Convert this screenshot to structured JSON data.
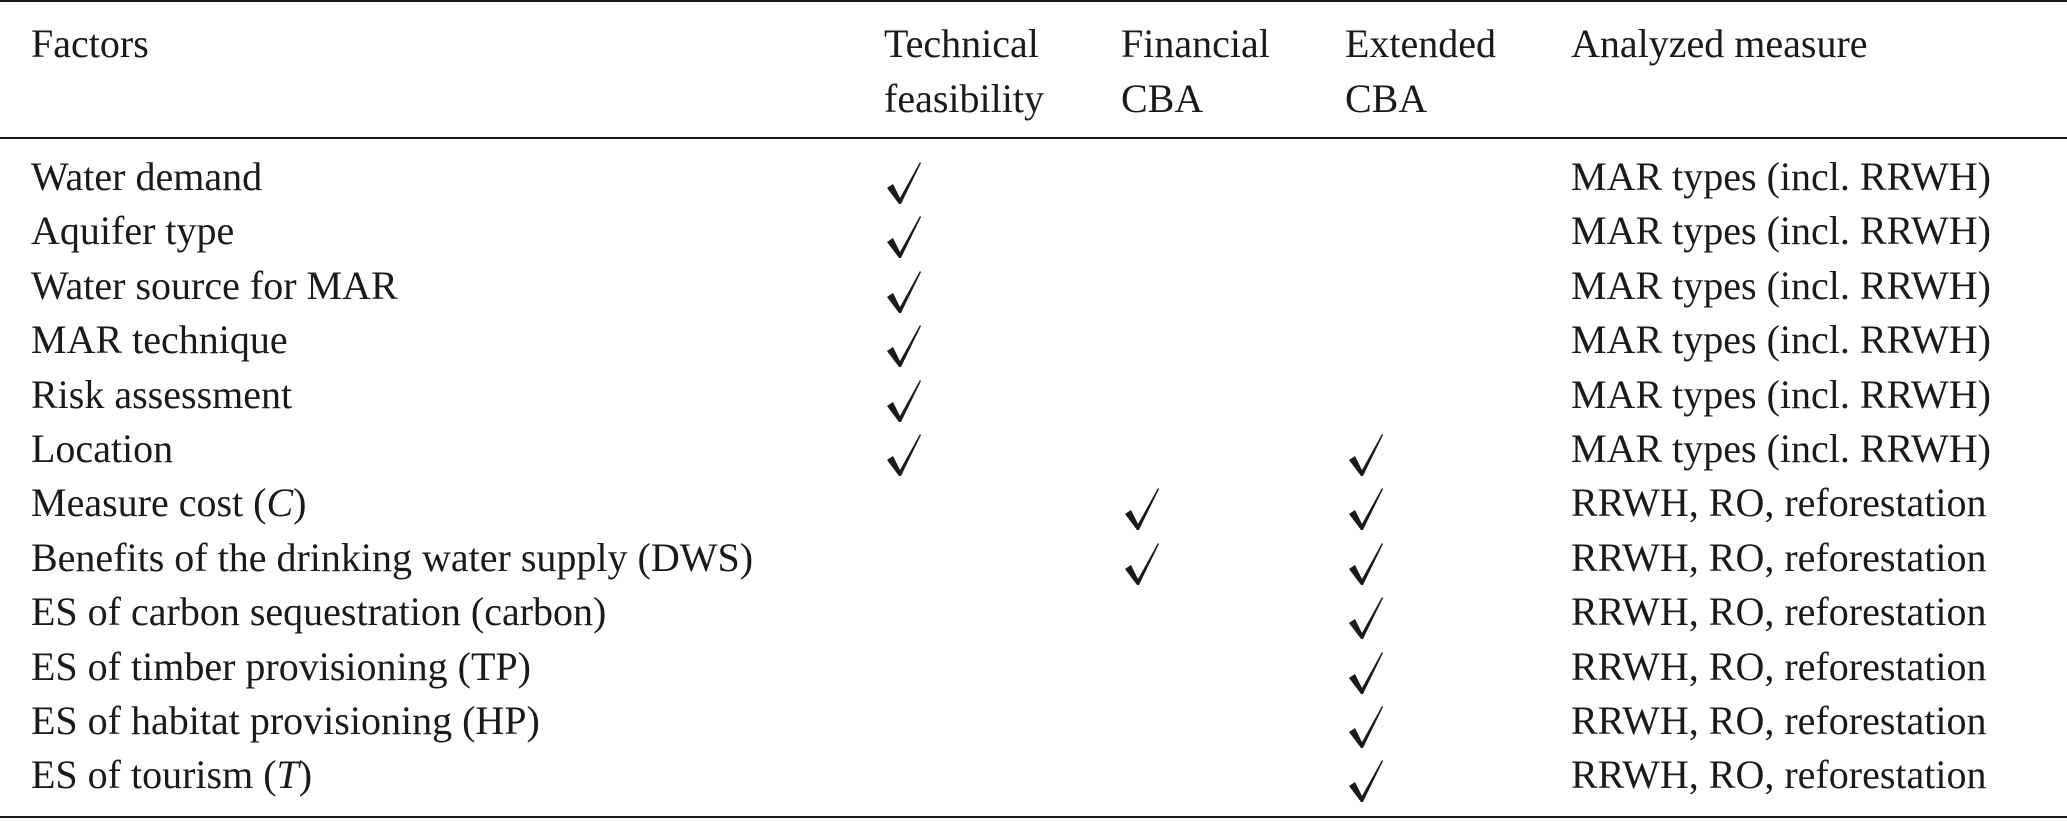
{
  "table": {
    "headers": {
      "factors": [
        "Factors"
      ],
      "technical": [
        "Technical",
        "feasibility"
      ],
      "financial": [
        "Financial",
        "CBA"
      ],
      "extended": [
        "Extended",
        "CBA"
      ],
      "measure": [
        "Analyzed measure"
      ]
    },
    "rows": [
      {
        "factor": "Water demand",
        "factor_italic": "",
        "factor_suffix": "",
        "technical": true,
        "financial": false,
        "extended": false,
        "measure": "MAR types (incl. RRWH)"
      },
      {
        "factor": "Aquifer type",
        "factor_italic": "",
        "factor_suffix": "",
        "technical": true,
        "financial": false,
        "extended": false,
        "measure": "MAR types (incl. RRWH)"
      },
      {
        "factor": "Water source for MAR",
        "factor_italic": "",
        "factor_suffix": "",
        "technical": true,
        "financial": false,
        "extended": false,
        "measure": "MAR types (incl. RRWH)"
      },
      {
        "factor": "MAR technique",
        "factor_italic": "",
        "factor_suffix": "",
        "technical": true,
        "financial": false,
        "extended": false,
        "measure": "MAR types (incl. RRWH)"
      },
      {
        "factor": "Risk assessment",
        "factor_italic": "",
        "factor_suffix": "",
        "technical": true,
        "financial": false,
        "extended": false,
        "measure": "MAR types (incl. RRWH)"
      },
      {
        "factor": "Location",
        "factor_italic": "",
        "factor_suffix": "",
        "technical": true,
        "financial": false,
        "extended": true,
        "measure": "MAR types (incl. RRWH)"
      },
      {
        "factor": "Measure cost (",
        "factor_italic": "C",
        "factor_suffix": ")",
        "technical": false,
        "financial": true,
        "extended": true,
        "measure": "RRWH, RO, reforestation"
      },
      {
        "factor": "Benefits of the drinking water supply (DWS)",
        "factor_italic": "",
        "factor_suffix": "",
        "technical": false,
        "financial": true,
        "extended": true,
        "measure": "RRWH, RO, reforestation"
      },
      {
        "factor": "ES of carbon sequestration (carbon)",
        "factor_italic": "",
        "factor_suffix": "",
        "technical": false,
        "financial": false,
        "extended": true,
        "measure": "RRWH, RO, reforestation"
      },
      {
        "factor": "ES of timber provisioning (TP)",
        "factor_italic": "",
        "factor_suffix": "",
        "technical": false,
        "financial": false,
        "extended": true,
        "measure": "RRWH, RO, reforestation"
      },
      {
        "factor": "ES of habitat provisioning (HP)",
        "factor_italic": "",
        "factor_suffix": "",
        "technical": false,
        "financial": false,
        "extended": true,
        "measure": "RRWH, RO, reforestation"
      },
      {
        "factor": "ES of tourism (",
        "factor_italic": "T",
        "factor_suffix": ")",
        "technical": false,
        "financial": false,
        "extended": true,
        "measure": "RRWH, RO, reforestation"
      }
    ]
  }
}
